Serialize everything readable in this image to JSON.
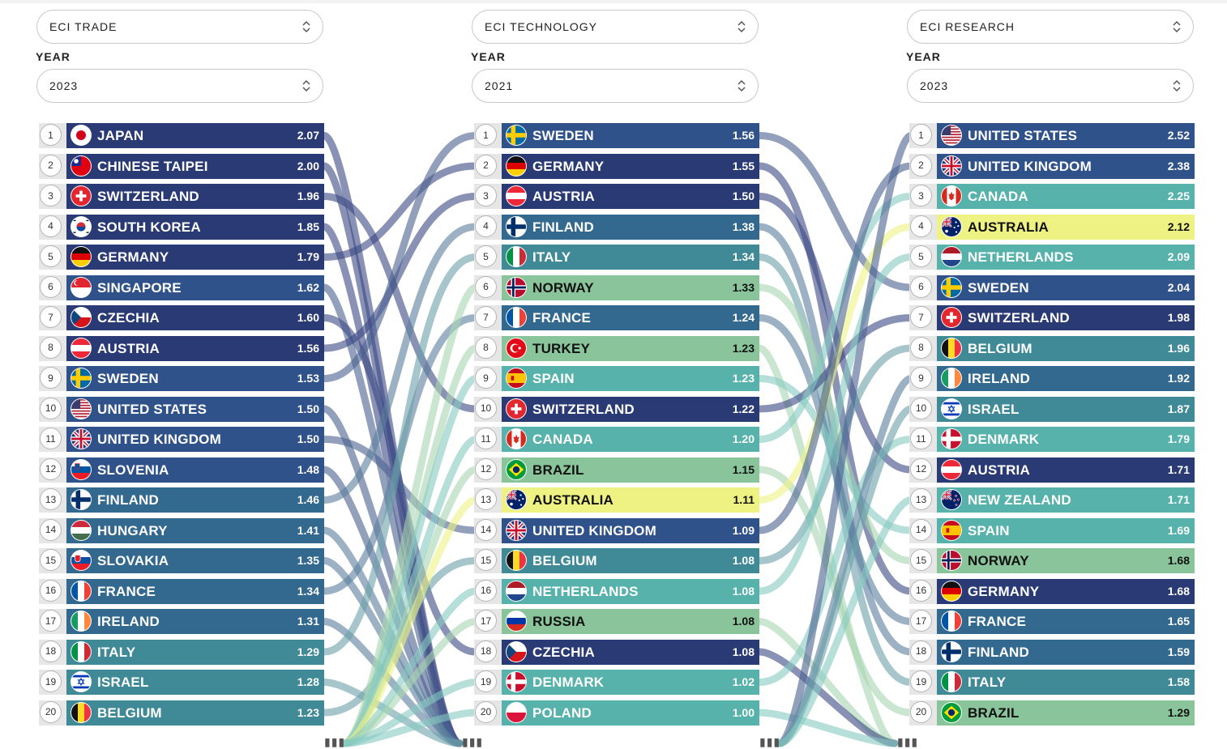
{
  "chart_data": {
    "type": "table",
    "panels": [
      {
        "indicator": "ECI TRADE",
        "year_label": "YEAR",
        "year": "2023",
        "rows": [
          {
            "rank": "1",
            "country": "JAPAN",
            "value": "2.07"
          },
          {
            "rank": "2",
            "country": "CHINESE TAIPEI",
            "value": "2.00"
          },
          {
            "rank": "3",
            "country": "SWITZERLAND",
            "value": "1.96"
          },
          {
            "rank": "4",
            "country": "SOUTH KOREA",
            "value": "1.85"
          },
          {
            "rank": "5",
            "country": "GERMANY",
            "value": "1.79"
          },
          {
            "rank": "6",
            "country": "SINGAPORE",
            "value": "1.62"
          },
          {
            "rank": "7",
            "country": "CZECHIA",
            "value": "1.60"
          },
          {
            "rank": "8",
            "country": "AUSTRIA",
            "value": "1.56"
          },
          {
            "rank": "9",
            "country": "SWEDEN",
            "value": "1.53"
          },
          {
            "rank": "10",
            "country": "UNITED STATES",
            "value": "1.50"
          },
          {
            "rank": "11",
            "country": "UNITED KINGDOM",
            "value": "1.50"
          },
          {
            "rank": "12",
            "country": "SLOVENIA",
            "value": "1.48"
          },
          {
            "rank": "13",
            "country": "FINLAND",
            "value": "1.46"
          },
          {
            "rank": "14",
            "country": "HUNGARY",
            "value": "1.41"
          },
          {
            "rank": "15",
            "country": "SLOVAKIA",
            "value": "1.35"
          },
          {
            "rank": "16",
            "country": "FRANCE",
            "value": "1.34"
          },
          {
            "rank": "17",
            "country": "IRELAND",
            "value": "1.31"
          },
          {
            "rank": "18",
            "country": "ITALY",
            "value": "1.29"
          },
          {
            "rank": "19",
            "country": "ISRAEL",
            "value": "1.28"
          },
          {
            "rank": "20",
            "country": "BELGIUM",
            "value": "1.23"
          }
        ]
      },
      {
        "indicator": "ECI TECHNOLOGY",
        "year_label": "YEAR",
        "year": "2021",
        "rows": [
          {
            "rank": "1",
            "country": "SWEDEN",
            "value": "1.56"
          },
          {
            "rank": "2",
            "country": "GERMANY",
            "value": "1.55"
          },
          {
            "rank": "3",
            "country": "AUSTRIA",
            "value": "1.50"
          },
          {
            "rank": "4",
            "country": "FINLAND",
            "value": "1.38"
          },
          {
            "rank": "5",
            "country": "ITALY",
            "value": "1.34"
          },
          {
            "rank": "6",
            "country": "NORWAY",
            "value": "1.33"
          },
          {
            "rank": "7",
            "country": "FRANCE",
            "value": "1.24"
          },
          {
            "rank": "8",
            "country": "TURKEY",
            "value": "1.23"
          },
          {
            "rank": "9",
            "country": "SPAIN",
            "value": "1.23"
          },
          {
            "rank": "10",
            "country": "SWITZERLAND",
            "value": "1.22"
          },
          {
            "rank": "11",
            "country": "CANADA",
            "value": "1.20"
          },
          {
            "rank": "12",
            "country": "BRAZIL",
            "value": "1.15"
          },
          {
            "rank": "13",
            "country": "AUSTRALIA",
            "value": "1.11"
          },
          {
            "rank": "14",
            "country": "UNITED KINGDOM",
            "value": "1.09"
          },
          {
            "rank": "15",
            "country": "BELGIUM",
            "value": "1.08"
          },
          {
            "rank": "16",
            "country": "NETHERLANDS",
            "value": "1.08"
          },
          {
            "rank": "17",
            "country": "RUSSIA",
            "value": "1.08"
          },
          {
            "rank": "18",
            "country": "CZECHIA",
            "value": "1.08"
          },
          {
            "rank": "19",
            "country": "DENMARK",
            "value": "1.02"
          },
          {
            "rank": "20",
            "country": "POLAND",
            "value": "1.00"
          }
        ]
      },
      {
        "indicator": "ECI RESEARCH",
        "year_label": "YEAR",
        "year": "2023",
        "rows": [
          {
            "rank": "1",
            "country": "UNITED STATES",
            "value": "2.52"
          },
          {
            "rank": "2",
            "country": "UNITED KINGDOM",
            "value": "2.38"
          },
          {
            "rank": "3",
            "country": "CANADA",
            "value": "2.25"
          },
          {
            "rank": "4",
            "country": "AUSTRALIA",
            "value": "2.12"
          },
          {
            "rank": "5",
            "country": "NETHERLANDS",
            "value": "2.09"
          },
          {
            "rank": "6",
            "country": "SWEDEN",
            "value": "2.04"
          },
          {
            "rank": "7",
            "country": "SWITZERLAND",
            "value": "1.98"
          },
          {
            "rank": "8",
            "country": "BELGIUM",
            "value": "1.96"
          },
          {
            "rank": "9",
            "country": "IRELAND",
            "value": "1.92"
          },
          {
            "rank": "10",
            "country": "ISRAEL",
            "value": "1.87"
          },
          {
            "rank": "11",
            "country": "DENMARK",
            "value": "1.79"
          },
          {
            "rank": "12",
            "country": "AUSTRIA",
            "value": "1.71"
          },
          {
            "rank": "13",
            "country": "NEW ZEALAND",
            "value": "1.71"
          },
          {
            "rank": "14",
            "country": "SPAIN",
            "value": "1.69"
          },
          {
            "rank": "15",
            "country": "NORWAY",
            "value": "1.68"
          },
          {
            "rank": "16",
            "country": "GERMANY",
            "value": "1.68"
          },
          {
            "rank": "17",
            "country": "FRANCE",
            "value": "1.65"
          },
          {
            "rank": "18",
            "country": "FINLAND",
            "value": "1.59"
          },
          {
            "rank": "19",
            "country": "ITALY",
            "value": "1.58"
          },
          {
            "rank": "20",
            "country": "BRAZIL",
            "value": "1.29"
          }
        ]
      }
    ]
  },
  "overflow_marker": "▮▮▮"
}
